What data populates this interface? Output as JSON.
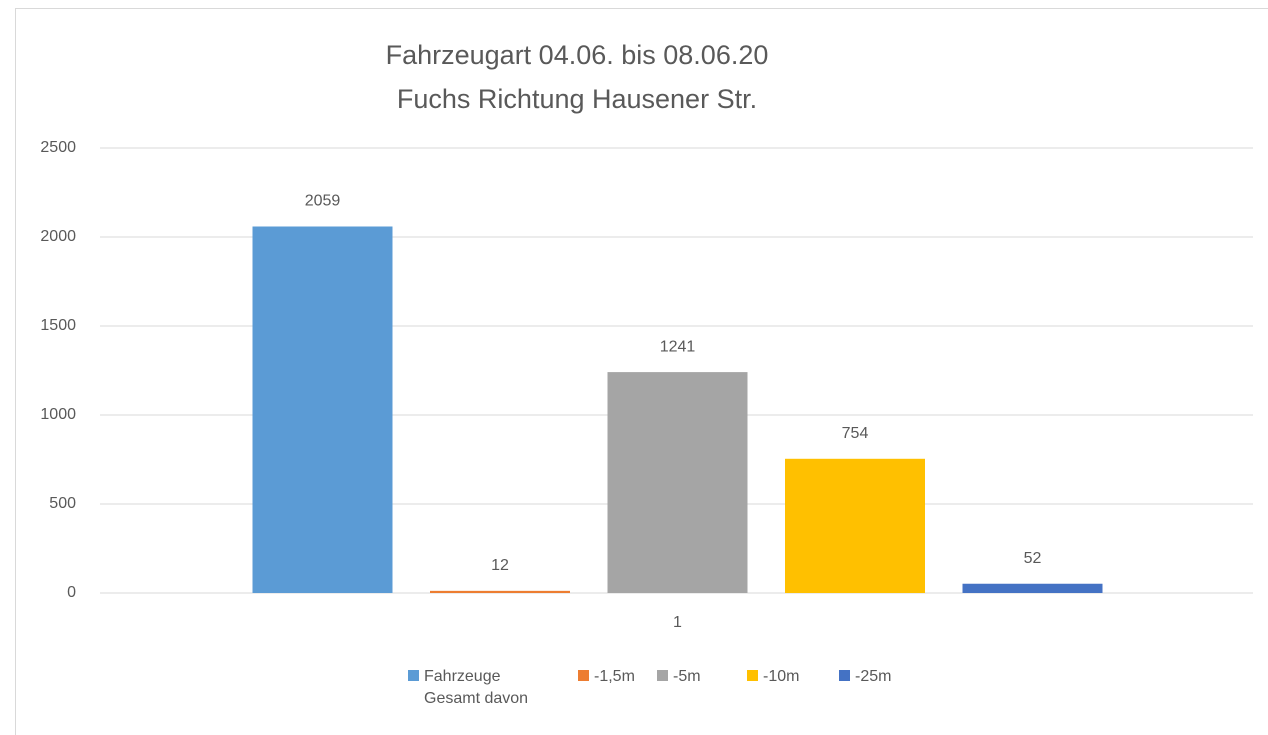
{
  "chart_data": {
    "type": "bar",
    "title": [
      "Fahrzeugart 04.06. bis 08.06.20",
      "Fuchs Richtung Hausener Str."
    ],
    "categories": [
      "1"
    ],
    "series": [
      {
        "name": "Fahrzeuge Gesamt davon",
        "color": "#5b9bd5",
        "values": [
          2059
        ]
      },
      {
        "name": "-1,5m",
        "color": "#ed7d31",
        "values": [
          12
        ]
      },
      {
        "name": "-5m",
        "color": "#a5a5a5",
        "values": [
          1241
        ]
      },
      {
        "name": "-10m",
        "color": "#ffc000",
        "values": [
          754
        ]
      },
      {
        "name": "-25m",
        "color": "#4472c4",
        "values": [
          52
        ]
      }
    ],
    "ylim": [
      0,
      2500
    ],
    "yticks": [
      0,
      500,
      1000,
      1500,
      2000,
      2500
    ],
    "grid": true,
    "legend": "bottom"
  }
}
